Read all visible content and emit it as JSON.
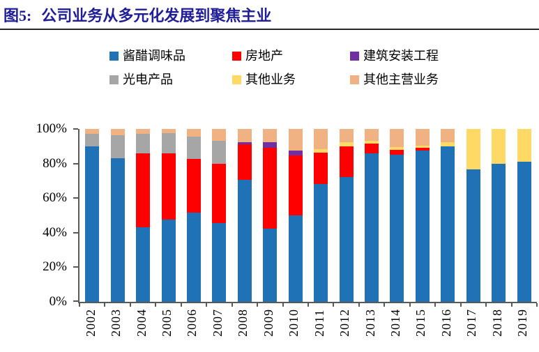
{
  "header": {
    "figure_no": "图5:",
    "title": "公司业务从多元化发展到聚焦主业",
    "title_color": "#1F1D98"
  },
  "chart_data": {
    "type": "bar",
    "stacked": true,
    "percent_stacked": true,
    "title": "图5: 公司业务从多元化发展到聚焦主业",
    "xlabel": "",
    "ylabel": "",
    "ylim": [
      0,
      100
    ],
    "y_ticks": [
      "100%",
      "80%",
      "60%",
      "40%",
      "20%",
      "0%"
    ],
    "grid": false,
    "legend_position": "top",
    "categories": [
      "2002",
      "2003",
      "2004",
      "2005",
      "2006",
      "2007",
      "2008",
      "2009",
      "2010",
      "2011",
      "2012",
      "2013",
      "2014",
      "2015",
      "2016",
      "2017",
      "2018",
      "2019"
    ],
    "series": [
      {
        "name": "酱醋调味品",
        "key": "condiments",
        "color": "#1F72B5",
        "values": [
          90,
          83,
          43,
          47.5,
          51.5,
          45.5,
          70.5,
          42.5,
          50,
          68,
          72,
          86,
          85,
          87.5,
          90,
          76.5,
          80,
          81
        ]
      },
      {
        "name": "房地产",
        "key": "real-estate",
        "color": "#FE0000",
        "values": [
          0,
          0,
          43,
          38.5,
          31,
          34.5,
          20.5,
          46.5,
          34.5,
          18.5,
          18,
          5.5,
          3,
          1.5,
          0,
          0,
          0,
          0
        ]
      },
      {
        "name": "建筑安装工程",
        "key": "construction",
        "color": "#7030A0",
        "values": [
          0,
          0,
          0,
          0,
          0,
          0,
          1.5,
          3.5,
          3,
          0,
          0,
          0,
          0,
          0,
          0,
          0,
          0,
          0
        ]
      },
      {
        "name": "光电产品",
        "key": "optoelectronics",
        "color": "#A6A6A6",
        "values": [
          7,
          13.5,
          11,
          11.5,
          13,
          13,
          0,
          0,
          0,
          0,
          0,
          0,
          0,
          0,
          0,
          0,
          0,
          0
        ]
      },
      {
        "name": "其他业务",
        "key": "other-business",
        "color": "#FFD965",
        "values": [
          0,
          0,
          0,
          0,
          0,
          0,
          0,
          0,
          0,
          2,
          2.5,
          1.5,
          1.5,
          1.5,
          2.5,
          23.5,
          20,
          19
        ]
      },
      {
        "name": "其他主营业务",
        "key": "other-main-business",
        "color": "#F0B183",
        "values": [
          3,
          3.5,
          3,
          2.5,
          4.5,
          7,
          7.5,
          7.5,
          12.5,
          11.5,
          7.5,
          7,
          10.5,
          9.5,
          7.5,
          0,
          0,
          0
        ]
      }
    ]
  }
}
